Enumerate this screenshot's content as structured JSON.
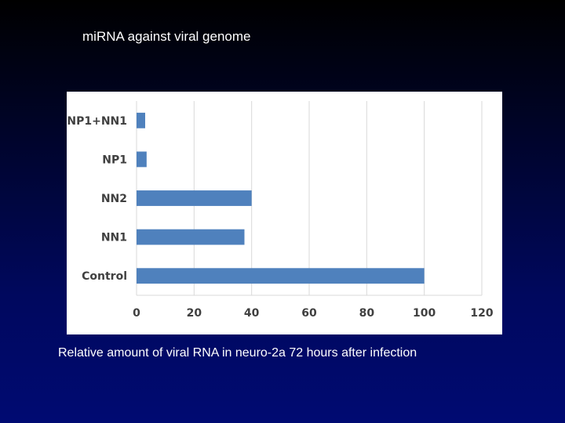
{
  "slide": {
    "title": "miRNA against viral genome",
    "caption": "Relative amount of viral RNA in neuro-2a 72 hours after infection"
  },
  "chart_data": {
    "type": "bar",
    "orientation": "horizontal",
    "categories": [
      "NP1+NN1",
      "NP1",
      "NN2",
      "NN1",
      "Control"
    ],
    "values": [
      3,
      3.5,
      40,
      37.5,
      100
    ],
    "xlim": [
      0,
      120
    ],
    "xticks": [
      "0",
      "20",
      "40",
      "60",
      "80",
      "100",
      "120"
    ],
    "grid": true,
    "bar_color": "#4f81bd",
    "grid_color": "#d9d9d9"
  }
}
